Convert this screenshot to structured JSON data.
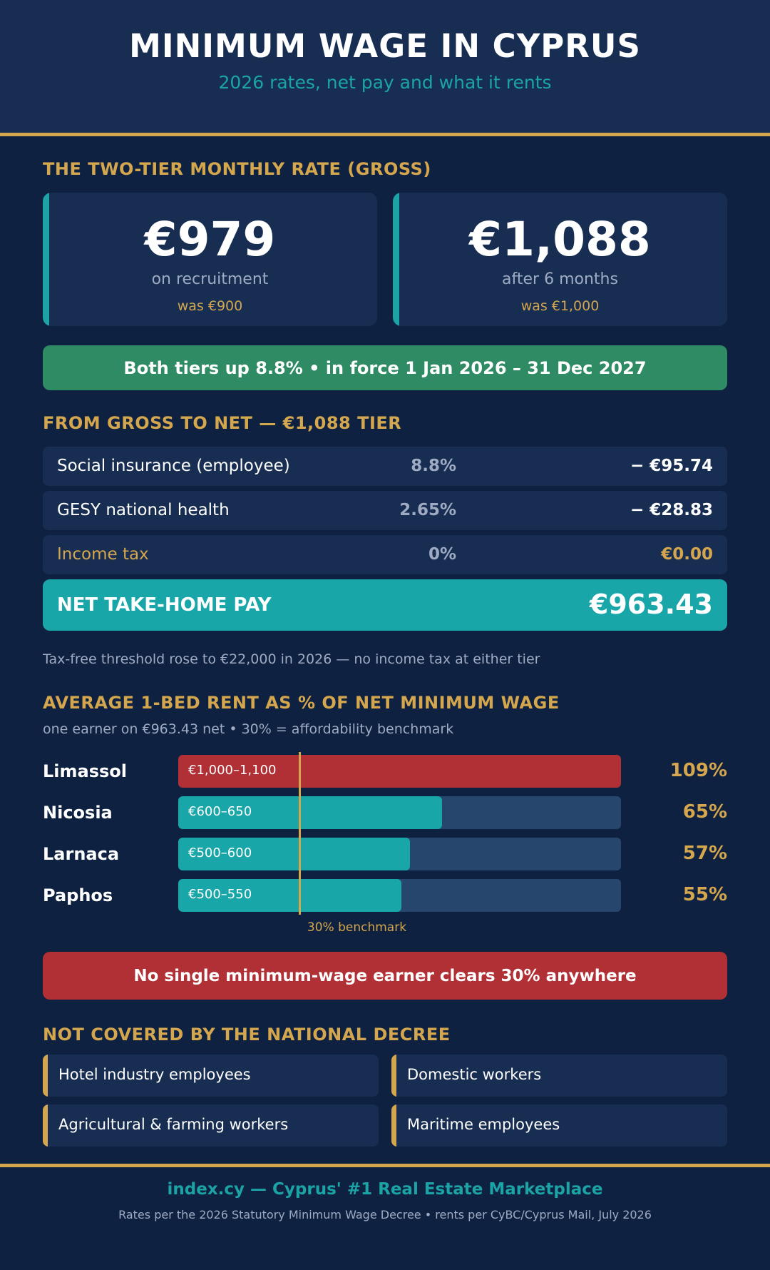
{
  "header": {
    "title": "MINIMUM WAGE IN CYPRUS",
    "subtitle": "2026 rates, net pay and what it rents"
  },
  "tiers": {
    "heading": "THE TWO-TIER MONTHLY RATE (GROSS)",
    "items": [
      {
        "amount": "€979",
        "desc": "on recruitment",
        "was": "was €900"
      },
      {
        "amount": "€1,088",
        "desc": "after 6 months",
        "was": "was €1,000"
      }
    ],
    "banner": "Both tiers up 8.8%  •  in force 1 Jan 2026 – 31 Dec 2027"
  },
  "net": {
    "heading": "FROM GROSS TO NET  —  €1,088 TIER",
    "rows": [
      {
        "label": "Social insurance (employee)",
        "rate": "8.8%",
        "amount": "− €95.74"
      },
      {
        "label": "GESY national health",
        "rate": "2.65%",
        "amount": "− €28.83"
      },
      {
        "label": "Income tax",
        "rate": "0%",
        "amount": "€0.00"
      }
    ],
    "total_label": "NET TAKE-HOME PAY",
    "total_amount": "€963.43",
    "note": "Tax-free threshold rose to €22,000 in 2026 — no income tax at either tier"
  },
  "rent": {
    "heading": "AVERAGE 1-BED RENT AS % OF NET MINIMUM WAGE",
    "subheading": "one earner on €963.43 net  •  30% = affordability benchmark",
    "benchmark_label": "30% benchmark",
    "banner": "No single minimum-wage earner clears 30% anywhere"
  },
  "chart_data": {
    "type": "bar",
    "orientation": "horizontal",
    "title": "AVERAGE 1-BED RENT AS % OF NET MINIMUM WAGE",
    "categories": [
      "Limassol",
      "Nicosia",
      "Larnaca",
      "Paphos"
    ],
    "values": [
      109,
      65,
      57,
      55
    ],
    "value_labels": [
      "109%",
      "65%",
      "57%",
      "55%"
    ],
    "rent_ranges": [
      "€1,000–1,100",
      "€600–650",
      "€500–600",
      "€500–550"
    ],
    "xlim": [
      0,
      109
    ],
    "benchmark": 30,
    "colors": {
      "over_100": "#b03035",
      "default": "#18a6a8",
      "track": "#27466d",
      "benchmark": "#d4a64e"
    }
  },
  "exclusions": {
    "heading": "NOT COVERED BY THE NATIONAL DECREE",
    "items": [
      "Hotel industry employees",
      "Domestic workers",
      "Agricultural & farming workers",
      "Maritime employees"
    ]
  },
  "footer": {
    "brand": "index.cy  —  Cyprus' #1 Real Estate Marketplace",
    "source": "Rates per the 2026 Statutory Minimum Wage Decree • rents per CyBC/Cyprus Mail, July 2026"
  },
  "colors": {
    "background": "#0f2140",
    "panel": "#172d52",
    "gold": "#d4a64e",
    "teal": "#1ba3a6",
    "green": "#2e8b64",
    "red": "#b03035"
  }
}
